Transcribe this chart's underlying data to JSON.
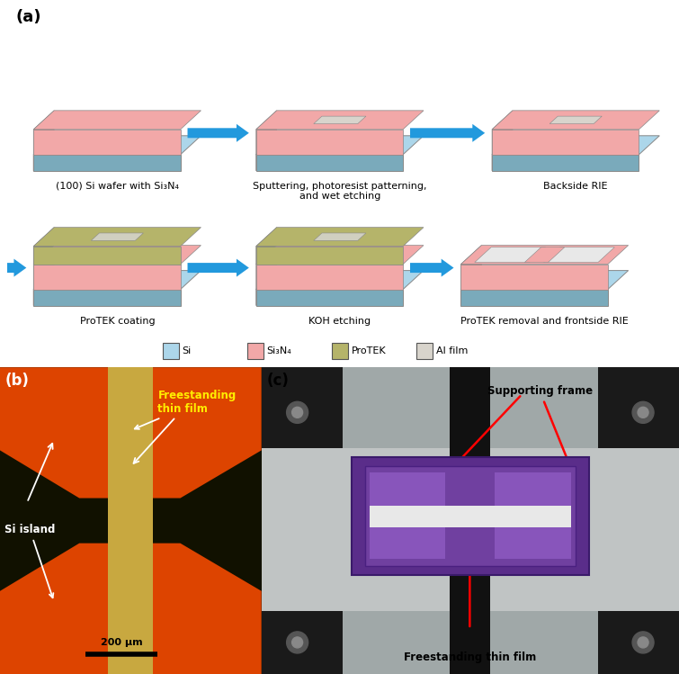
{
  "title_a": "(a)",
  "title_b": "(b)",
  "title_c": "(c)",
  "label_step1": "(100) Si wafer with Si₃N₄",
  "label_step2": "Sputtering, photoresist patterning,\nand wet etching",
  "label_step3": "Backside RIE",
  "label_step4": "ProTEK coating",
  "label_step5": "KOH etching",
  "label_step6": "ProTEK removal and frontside RIE",
  "legend_items": [
    "Si",
    "Si₃N₄",
    "ProTEK",
    "Al film"
  ],
  "legend_colors": [
    "#acd6ea",
    "#f2a8a8",
    "#b5b46a",
    "#d8d4cc"
  ],
  "bg_color": "#ffffff",
  "arrow_color": "#2299dd",
  "si_color": "#acd6ea",
  "si_top_color": "#acd6ea",
  "si_left_color": "#88b8cc",
  "si_bottom_color": "#7aaabb",
  "si3n4_color": "#f2a8a8",
  "si3n4_left_color": "#cc8888",
  "si3n4_bottom_color": "#bb7777",
  "protek_color": "#b5b46a",
  "protek_left_color": "#8a8a48",
  "protek_bottom_color": "#797948",
  "al_color": "#d8d4cc",
  "label_b_freestanding1": "Freestanding",
  "label_b_freestanding2": "thin film",
  "label_b_si_island": "Si island",
  "label_b_scalebar": "200 μm",
  "label_c_supporting": "Supporting frame",
  "label_c_freestanding": "Freestanding thin film",
  "orange_red": "#dd4400",
  "gold": "#c8a840"
}
